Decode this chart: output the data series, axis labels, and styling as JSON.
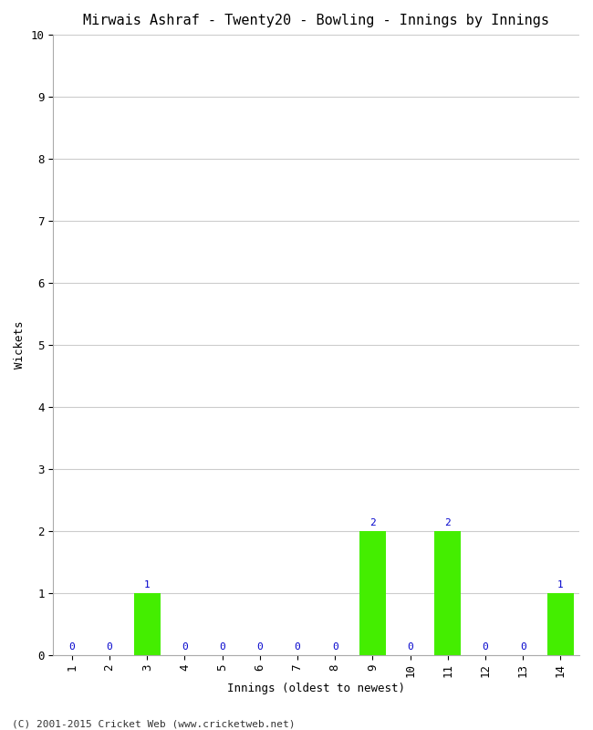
{
  "title": "Mirwais Ashraf - Twenty20 - Bowling - Innings by Innings",
  "xlabel": "Innings (oldest to newest)",
  "ylabel": "Wickets",
  "innings": [
    1,
    2,
    3,
    4,
    5,
    6,
    7,
    8,
    9,
    10,
    11,
    12,
    13,
    14
  ],
  "wickets": [
    0,
    0,
    1,
    0,
    0,
    0,
    0,
    0,
    2,
    0,
    2,
    0,
    0,
    1
  ],
  "bar_color": "#44ee00",
  "label_color": "#0000cc",
  "ylim": [
    0,
    10
  ],
  "yticks": [
    0,
    1,
    2,
    3,
    4,
    5,
    6,
    7,
    8,
    9,
    10
  ],
  "background_color": "#ffffff",
  "plot_bg_color": "#ffffff",
  "grid_color": "#cccccc",
  "title_fontsize": 11,
  "axis_label_fontsize": 9,
  "tick_fontsize": 9,
  "label_fontsize": 8,
  "footer": "(C) 2001-2015 Cricket Web (www.cricketweb.net)"
}
